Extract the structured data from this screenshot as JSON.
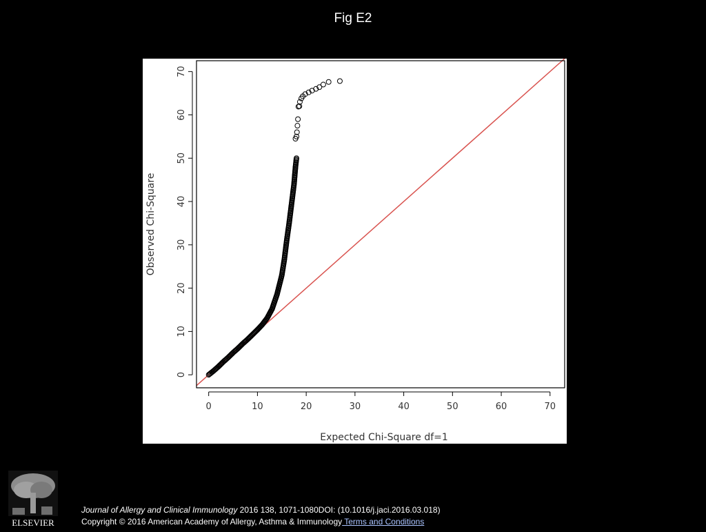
{
  "title": "Fig E2",
  "chart_data": {
    "type": "scatter",
    "title": "",
    "xlabel": "Expected Chi-Square df=1",
    "ylabel": "Observed Chi-Square",
    "xlim": [
      -2.5,
      73
    ],
    "ylim": [
      -3,
      72.5
    ],
    "x_ticks": [
      0,
      10,
      20,
      30,
      40,
      50,
      60,
      70
    ],
    "y_ticks": [
      0,
      10,
      20,
      30,
      40,
      50,
      60,
      70
    ],
    "reference_line": {
      "from": [
        -2.5,
        -2.5
      ],
      "to": [
        73,
        73
      ],
      "color": "#d9534f"
    },
    "grid": false,
    "points_color": "#000000",
    "curve_points": [
      [
        0,
        0
      ],
      [
        1,
        0.9
      ],
      [
        2,
        1.9
      ],
      [
        3,
        3
      ],
      [
        4,
        4
      ],
      [
        5,
        5.1
      ],
      [
        6,
        6.1
      ],
      [
        7,
        7.2
      ],
      [
        8,
        8.2
      ],
      [
        9,
        9.3
      ],
      [
        10,
        10.4
      ],
      [
        11,
        11.6
      ],
      [
        12,
        13.1
      ],
      [
        13,
        15.2
      ],
      [
        14,
        18.5
      ],
      [
        15,
        23
      ],
      [
        15.5,
        26.5
      ],
      [
        16,
        31
      ],
      [
        16.5,
        35
      ],
      [
        17,
        39.5
      ],
      [
        17.5,
        44
      ],
      [
        17.8,
        48
      ],
      [
        18,
        50
      ]
    ],
    "outlier_points": [
      [
        17.8,
        54.5
      ],
      [
        18,
        55
      ],
      [
        18.1,
        56
      ],
      [
        18.2,
        57.5
      ],
      [
        18.3,
        59
      ],
      [
        18.4,
        61.9
      ],
      [
        18.6,
        62
      ],
      [
        18.7,
        63
      ],
      [
        19,
        63.8
      ],
      [
        19.3,
        64.3
      ],
      [
        19.8,
        64.8
      ],
      [
        20.5,
        65.2
      ],
      [
        21.2,
        65.6
      ],
      [
        22,
        66
      ],
      [
        22.7,
        66.4
      ],
      [
        23.5,
        67
      ],
      [
        24.6,
        67.6
      ],
      [
        26.9,
        67.8
      ]
    ]
  },
  "publisher_logo": {
    "text": "ELSEVIER",
    "icon": "elsevier-tree-logo"
  },
  "citation": {
    "journal": "Journal of Allergy and Clinical Immunology",
    "details": " 2016 138, 1071-1080DOI: (10.1016/j.jaci.2016.03.018)",
    "copyright": "Copyright © 2016 American Academy of Allergy, Asthma & Immunology",
    "terms_link": " Terms and Conditions"
  }
}
